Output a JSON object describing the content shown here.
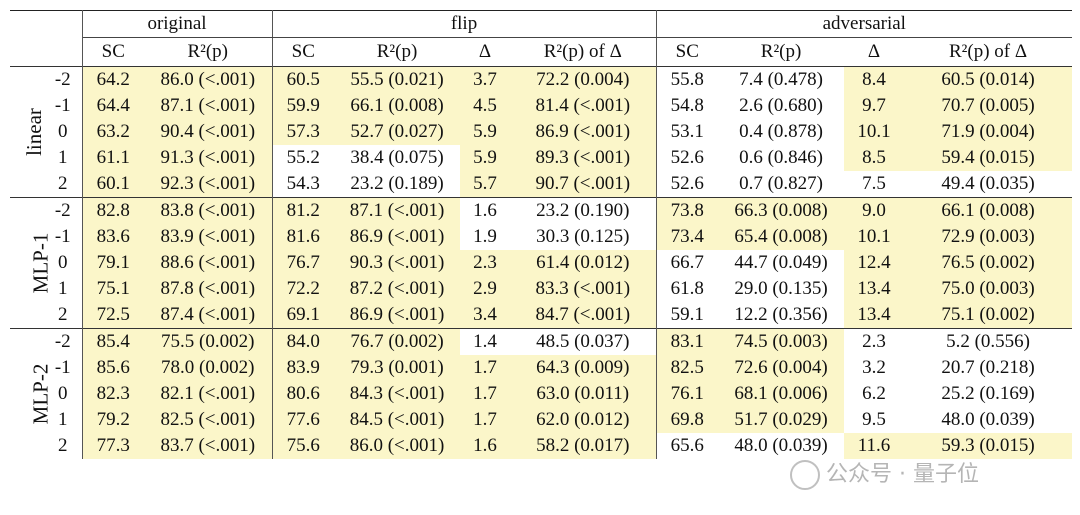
{
  "headers": {
    "groups": [
      "original",
      "flip",
      "adversarial"
    ],
    "columns": [
      "SC",
      "R²(p)",
      "SC",
      "R²(p)",
      "Δ",
      "R²(p) of Δ",
      "SC",
      "R²(p)",
      "Δ",
      "R²(p) of Δ"
    ]
  },
  "row_groups": [
    {
      "label": "linear",
      "rows": [
        {
          "idx": "-2",
          "cells": [
            "64.2",
            "86.0 (<.001)",
            "60.5",
            "55.5 (0.021)",
            "3.7",
            "72.2 (0.004)",
            "55.8",
            "7.4 (0.478)",
            "8.4",
            "60.5 (0.014)"
          ]
        },
        {
          "idx": "-1",
          "cells": [
            "64.4",
            "87.1 (<.001)",
            "59.9",
            "66.1 (0.008)",
            "4.5",
            "81.4 (<.001)",
            "54.8",
            "2.6 (0.680)",
            "9.7",
            "70.7 (0.005)"
          ]
        },
        {
          "idx": "0",
          "cells": [
            "63.2",
            "90.4 (<.001)",
            "57.3",
            "52.7 (0.027)",
            "5.9",
            "86.9 (<.001)",
            "53.1",
            "0.4 (0.878)",
            "10.1",
            "71.9 (0.004)"
          ]
        },
        {
          "idx": "1",
          "cells": [
            "61.1",
            "91.3 (<.001)",
            "55.2",
            "38.4 (0.075)",
            "5.9",
            "89.3 (<.001)",
            "52.6",
            "0.6 (0.846)",
            "8.5",
            "59.4 (0.015)"
          ]
        },
        {
          "idx": "2",
          "cells": [
            "60.1",
            "92.3 (<.001)",
            "54.3",
            "23.2 (0.189)",
            "5.7",
            "90.7 (<.001)",
            "52.6",
            "0.7 (0.827)",
            "7.5",
            "49.4 (0.035)"
          ]
        }
      ]
    },
    {
      "label": "MLP-1",
      "rows": [
        {
          "idx": "-2",
          "cells": [
            "82.8",
            "83.8 (<.001)",
            "81.2",
            "87.1 (<.001)",
            "1.6",
            "23.2 (0.190)",
            "73.8",
            "66.3 (0.008)",
            "9.0",
            "66.1 (0.008)"
          ]
        },
        {
          "idx": "-1",
          "cells": [
            "83.6",
            "83.9 (<.001)",
            "81.6",
            "86.9 (<.001)",
            "1.9",
            "30.3 (0.125)",
            "73.4",
            "65.4 (0.008)",
            "10.1",
            "72.9 (0.003)"
          ]
        },
        {
          "idx": "0",
          "cells": [
            "79.1",
            "88.6 (<.001)",
            "76.7",
            "90.3 (<.001)",
            "2.3",
            "61.4 (0.012)",
            "66.7",
            "44.7 (0.049)",
            "12.4",
            "76.5 (0.002)"
          ]
        },
        {
          "idx": "1",
          "cells": [
            "75.1",
            "87.8 (<.001)",
            "72.2",
            "87.2 (<.001)",
            "2.9",
            "83.3 (<.001)",
            "61.8",
            "29.0 (0.135)",
            "13.4",
            "75.0 (0.003)"
          ]
        },
        {
          "idx": "2",
          "cells": [
            "72.5",
            "87.4 (<.001)",
            "69.1",
            "86.9 (<.001)",
            "3.4",
            "84.7 (<.001)",
            "59.1",
            "12.2 (0.356)",
            "13.4",
            "75.1 (0.002)"
          ]
        }
      ]
    },
    {
      "label": "MLP-2",
      "rows": [
        {
          "idx": "-2",
          "cells": [
            "85.4",
            "75.5 (0.002)",
            "84.0",
            "76.7 (0.002)",
            "1.4",
            "48.5 (0.037)",
            "83.1",
            "74.5 (0.003)",
            "2.3",
            "5.2 (0.556)"
          ]
        },
        {
          "idx": "-1",
          "cells": [
            "85.6",
            "78.0 (0.002)",
            "83.9",
            "79.3 (0.001)",
            "1.7",
            "64.3 (0.009)",
            "82.5",
            "72.6 (0.004)",
            "3.2",
            "20.7 (0.218)"
          ]
        },
        {
          "idx": "0",
          "cells": [
            "82.3",
            "82.1 (<.001)",
            "80.6",
            "84.3 (<.001)",
            "1.7",
            "63.0 (0.011)",
            "76.1",
            "68.1 (0.006)",
            "6.2",
            "25.2 (0.169)"
          ]
        },
        {
          "idx": "1",
          "cells": [
            "79.2",
            "82.5 (<.001)",
            "77.6",
            "84.5 (<.001)",
            "1.7",
            "62.0 (0.012)",
            "69.8",
            "51.7 (0.029)",
            "9.5",
            "48.0 (0.039)"
          ]
        },
        {
          "idx": "2",
          "cells": [
            "77.3",
            "83.7 (<.001)",
            "75.6",
            "86.0 (<.001)",
            "1.6",
            "58.2 (0.017)",
            "65.6",
            "48.0 (0.039)",
            "11.6",
            "59.3 (0.015)"
          ]
        }
      ]
    }
  ],
  "highlight_color": "#fbf6c9",
  "watermark": {
    "text": "公众号 · 量子位",
    "icon": "wechat-logo-icon"
  }
}
